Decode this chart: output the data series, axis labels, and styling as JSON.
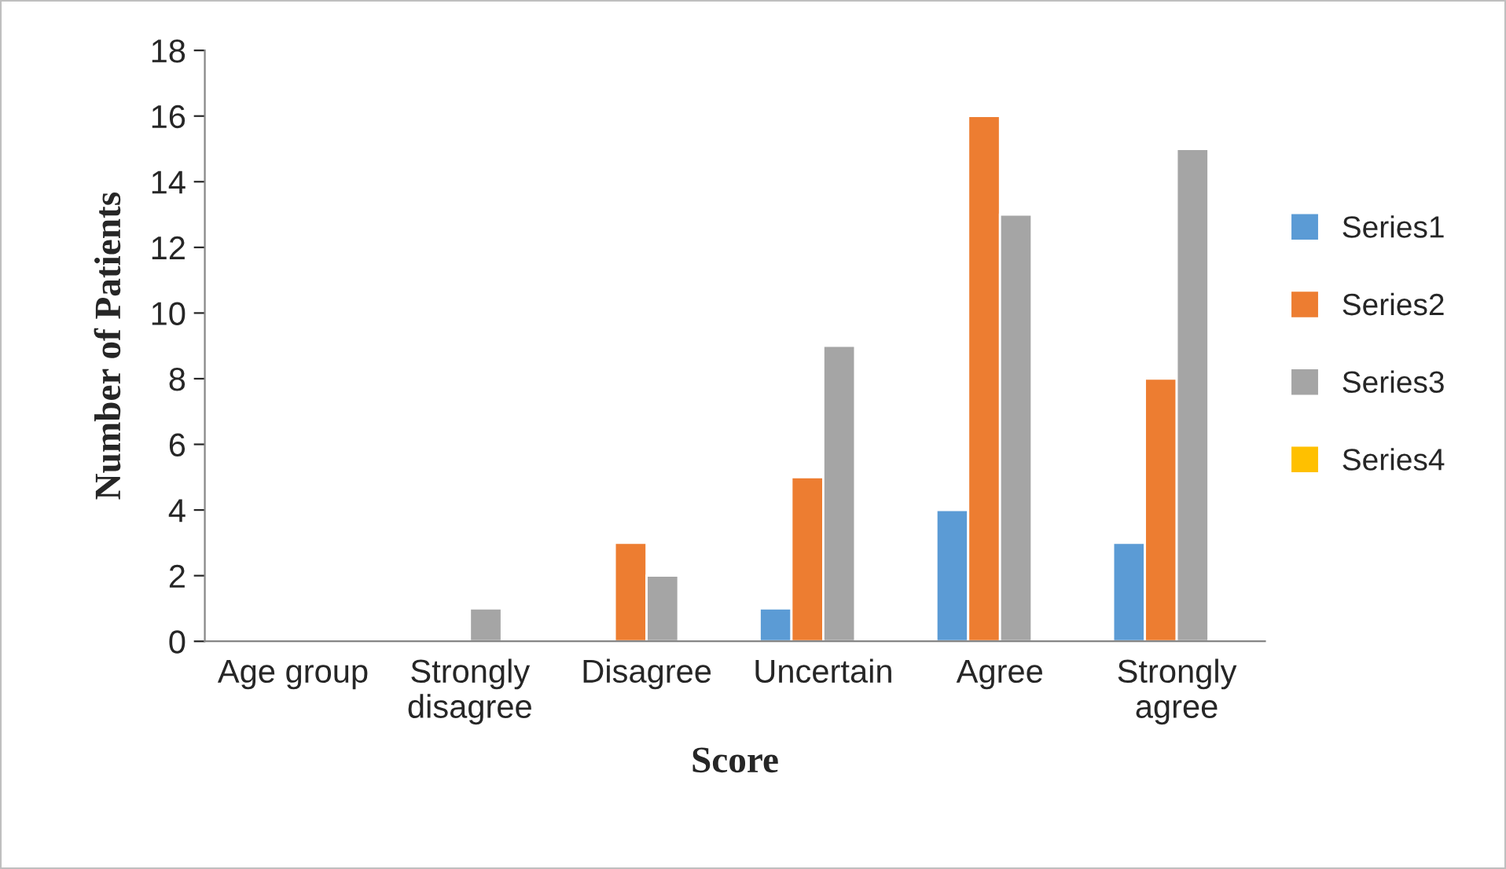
{
  "chart_data": {
    "type": "bar",
    "xlabel": "Score",
    "ylabel": "Number of Patients",
    "categories": [
      "Age group",
      "Strongly disagree",
      "Disagree",
      "Uncertain",
      "Agree",
      "Strongly agree"
    ],
    "series": [
      {
        "name": "Series1",
        "color": "#5b9bd5",
        "values": [
          null,
          null,
          null,
          1,
          4,
          3
        ]
      },
      {
        "name": "Series2",
        "color": "#ed7d31",
        "values": [
          null,
          null,
          3,
          5,
          16,
          8
        ]
      },
      {
        "name": "Series3",
        "color": "#a5a5a5",
        "values": [
          null,
          1,
          2,
          9,
          13,
          15
        ]
      },
      {
        "name": "Series4",
        "color": "#ffc000",
        "values": [
          null,
          null,
          null,
          null,
          null,
          null
        ]
      }
    ],
    "ylim": [
      0,
      18
    ],
    "yticks": [
      0,
      2,
      4,
      6,
      8,
      10,
      12,
      14,
      16,
      18
    ],
    "grid": false,
    "legend": "right"
  }
}
